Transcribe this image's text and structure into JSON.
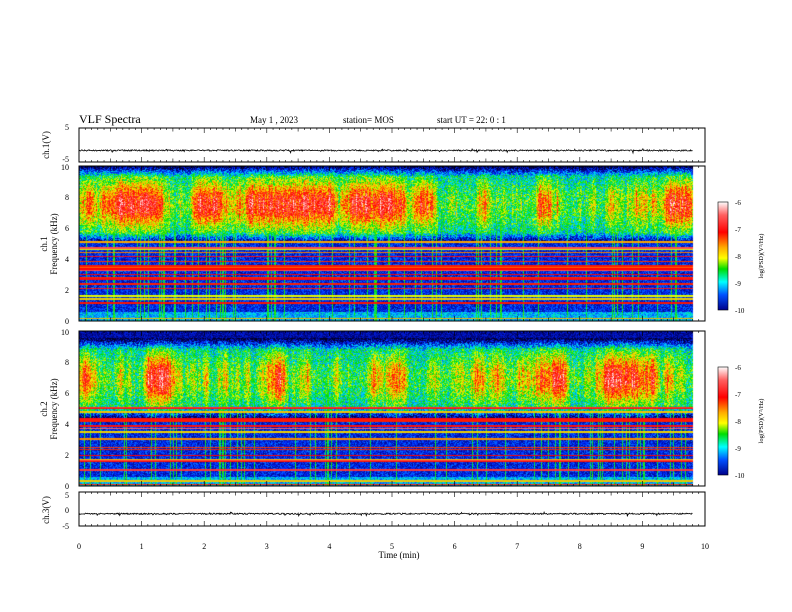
{
  "header": {
    "title": "VLF Spectra",
    "date": "May 1 , 2023",
    "station": "station= MOS",
    "start": "start UT = 22: 0 : 1"
  },
  "colorbar": {
    "label": "log(PSD)(V²/Hz)",
    "ticks": [
      "-6",
      "-7",
      "-8",
      "-9",
      "-10"
    ],
    "range": [
      -10,
      -6
    ]
  },
  "chart_data": [
    {
      "type": "line",
      "ylabel": "ch.1(V)",
      "ylim": [
        -5,
        5
      ],
      "yticks": [
        "5",
        "-5"
      ],
      "xlim": [
        0,
        10
      ],
      "baseline": -1.6
    },
    {
      "type": "heatmap",
      "ylabel": "ch.1",
      "ylabel2": "Frequency (kHz)",
      "ylim": [
        0,
        10
      ],
      "yticks": [
        "0",
        "2",
        "4",
        "6",
        "8",
        "10"
      ],
      "xlim": [
        0,
        10
      ],
      "data_end_min": 9.82,
      "band_khz": [
        5.5,
        9.5
      ]
    },
    {
      "type": "heatmap",
      "ylabel": "ch.2",
      "ylabel2": "Frequency (kHz)",
      "ylim": [
        0,
        10
      ],
      "yticks": [
        "0",
        "2",
        "4",
        "6",
        "8",
        "10"
      ],
      "xlim": [
        0,
        10
      ],
      "data_end_min": 9.82,
      "band_khz": [
        4.8,
        9.0
      ]
    },
    {
      "type": "line",
      "ylabel": "ch.3(V)",
      "ylim": [
        -5,
        5
      ],
      "yticks": [
        "5",
        "0",
        "-5"
      ],
      "xlim": [
        0,
        10
      ],
      "baseline": -1.4,
      "xlabel": "Time (min)",
      "xticks": [
        "0",
        "1",
        "2",
        "3",
        "4",
        "5",
        "6",
        "7",
        "8",
        "9",
        "10"
      ]
    }
  ]
}
